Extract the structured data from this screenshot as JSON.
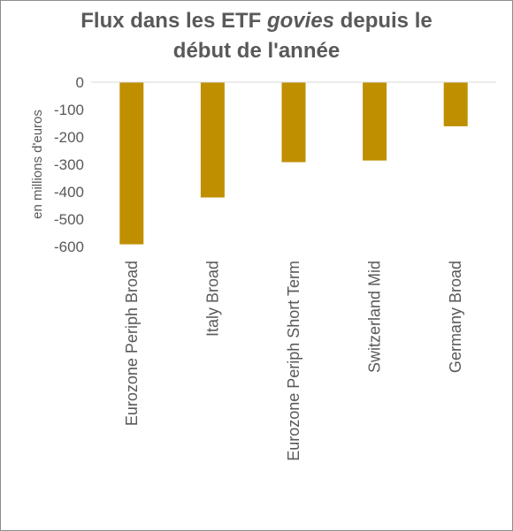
{
  "chart_data": {
    "type": "bar",
    "title_parts": [
      {
        "text": "Flux dans les ETF ",
        "italic": false
      },
      {
        "text": "govies",
        "italic": true
      },
      {
        "text": " depuis le",
        "italic": false
      },
      {
        "text": "début de l'année",
        "italic": false,
        "newline": true
      }
    ],
    "ylabel": "en millions d'euros",
    "categories": [
      "Eurozone Periph Broad",
      "Italy Broad",
      "Eurozone Periph Short Term",
      "Switzerland Mid",
      "Germany Broad"
    ],
    "values": [
      -592,
      -421,
      -292,
      -286,
      -161
    ],
    "ylim": [
      -600,
      0
    ],
    "yticks": [
      0,
      -100,
      -200,
      -300,
      -400,
      -500,
      -600
    ],
    "ytick_labels": [
      "0",
      "-100",
      "-200",
      "-300",
      "-400",
      "-500",
      "-600"
    ],
    "bar_color": "#bf8f00",
    "grid": false,
    "legend": "none"
  }
}
